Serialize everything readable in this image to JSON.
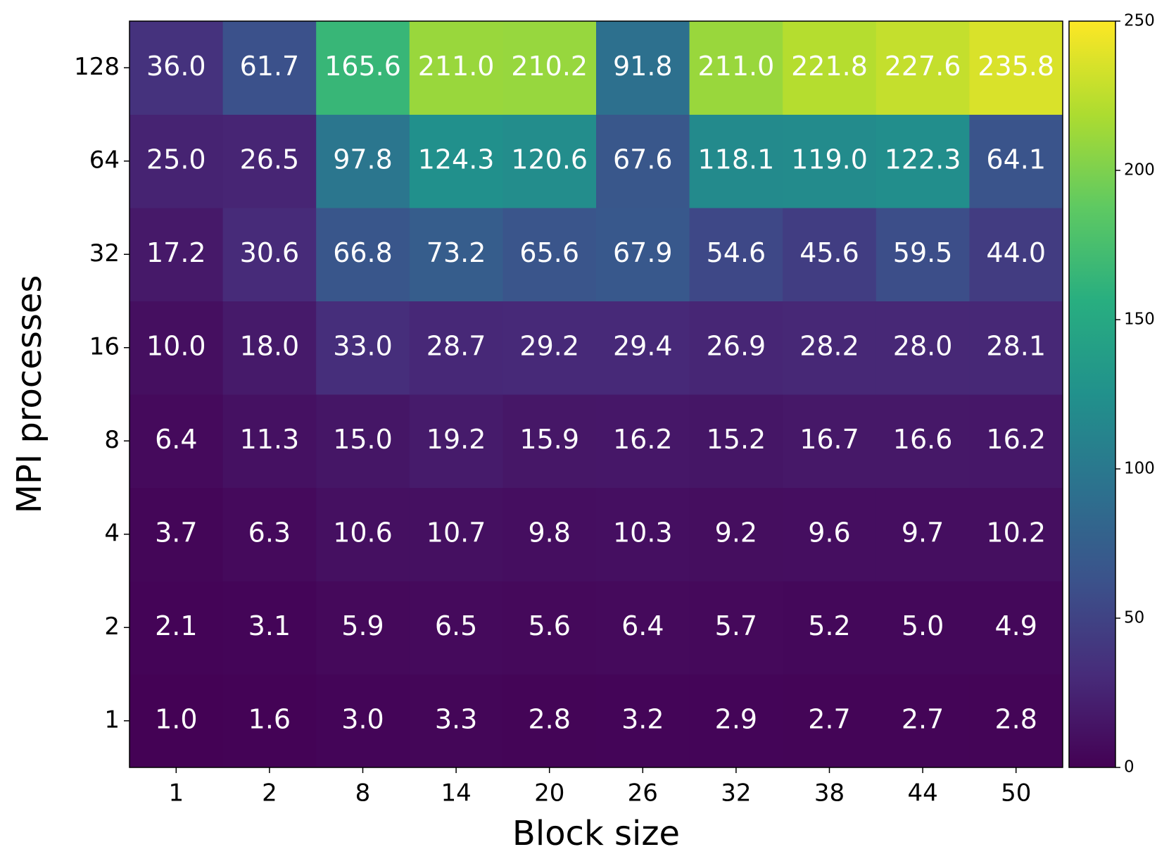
{
  "chart_data": {
    "type": "heatmap",
    "x_label": "Block size",
    "y_label": "MPI processes",
    "x_categories": [
      "1",
      "2",
      "8",
      "14",
      "20",
      "26",
      "32",
      "38",
      "44",
      "50"
    ],
    "y_categories": [
      "1",
      "2",
      "4",
      "8",
      "16",
      "32",
      "64",
      "128"
    ],
    "values": [
      [
        1.0,
        1.6,
        3.0,
        3.3,
        2.8,
        3.2,
        2.9,
        2.7,
        2.7,
        2.8
      ],
      [
        2.1,
        3.1,
        5.9,
        6.5,
        5.6,
        6.4,
        5.7,
        5.2,
        5.0,
        4.9
      ],
      [
        3.7,
        6.3,
        10.6,
        10.7,
        9.8,
        10.3,
        9.2,
        9.6,
        9.7,
        10.2
      ],
      [
        6.4,
        11.3,
        15.0,
        19.2,
        15.9,
        16.2,
        15.2,
        16.7,
        16.6,
        16.2
      ],
      [
        10.0,
        18.0,
        33.0,
        28.7,
        29.2,
        29.4,
        26.9,
        28.2,
        28.0,
        28.1
      ],
      [
        17.2,
        30.6,
        66.8,
        73.2,
        65.6,
        67.9,
        54.6,
        45.6,
        59.5,
        44.0
      ],
      [
        25.0,
        26.5,
        97.8,
        124.3,
        120.6,
        67.6,
        118.1,
        119.0,
        122.3,
        64.1
      ],
      [
        36.0,
        61.7,
        165.6,
        211.0,
        210.2,
        91.8,
        211.0,
        221.8,
        227.6,
        235.8
      ]
    ],
    "value_labels": [
      [
        "1.0",
        "1.6",
        "3.0",
        "3.3",
        "2.8",
        "3.2",
        "2.9",
        "2.7",
        "2.7",
        "2.8"
      ],
      [
        "2.1",
        "3.1",
        "5.9",
        "6.5",
        "5.6",
        "6.4",
        "5.7",
        "5.2",
        "5.0",
        "4.9"
      ],
      [
        "3.7",
        "6.3",
        "10.6",
        "10.7",
        "9.8",
        "10.3",
        "9.2",
        "9.6",
        "9.7",
        "10.2"
      ],
      [
        "6.4",
        "11.3",
        "15.0",
        "19.2",
        "15.9",
        "16.2",
        "15.2",
        "16.7",
        "16.6",
        "16.2"
      ],
      [
        "10.0",
        "18.0",
        "33.0",
        "28.7",
        "29.2",
        "29.4",
        "26.9",
        "28.2",
        "28.0",
        "28.1"
      ],
      [
        "17.2",
        "30.6",
        "66.8",
        "73.2",
        "65.6",
        "67.9",
        "54.6",
        "45.6",
        "59.5",
        "44.0"
      ],
      [
        "25.0",
        "26.5",
        "97.8",
        "124.3",
        "120.6",
        "67.6",
        "118.1",
        "119.0",
        "122.3",
        "64.1"
      ],
      [
        "36.0",
        "61.7",
        "165.6",
        "211.0",
        "210.2",
        "91.8",
        "211.0",
        "221.8",
        "227.6",
        "235.8"
      ]
    ],
    "colormap": "viridis",
    "clim": [
      0,
      250
    ],
    "cticks": [
      0,
      50,
      100,
      150,
      200,
      250
    ]
  }
}
